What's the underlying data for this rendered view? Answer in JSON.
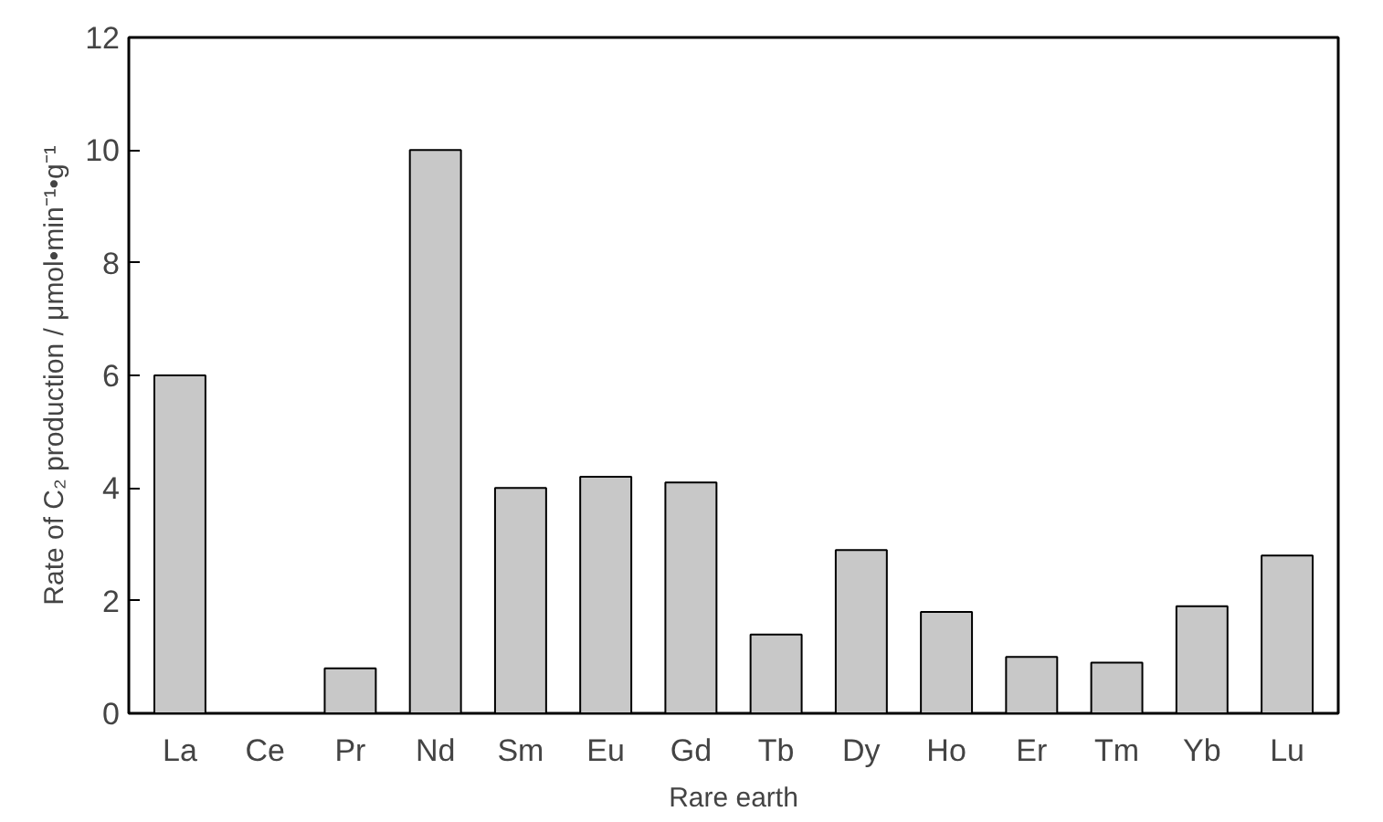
{
  "chart_data": {
    "type": "bar",
    "xlabel": "Rare earth",
    "ylabel": "Rate of C₂ production / μmol•min⁻¹•g⁻¹",
    "categories": [
      "La",
      "Ce",
      "Pr",
      "Nd",
      "Sm",
      "Eu",
      "Gd",
      "Tb",
      "Dy",
      "Ho",
      "Er",
      "Tm",
      "Yb",
      "Lu"
    ],
    "values": [
      6.0,
      0,
      0.8,
      10.0,
      4.0,
      4.2,
      4.1,
      1.4,
      2.9,
      1.8,
      1.0,
      0.9,
      1.9,
      2.8
    ],
    "color": "#c8c8c8",
    "ylim": [
      0,
      12
    ],
    "yticks": [
      0,
      2,
      4,
      6,
      8,
      10,
      12
    ],
    "grid": false
  }
}
